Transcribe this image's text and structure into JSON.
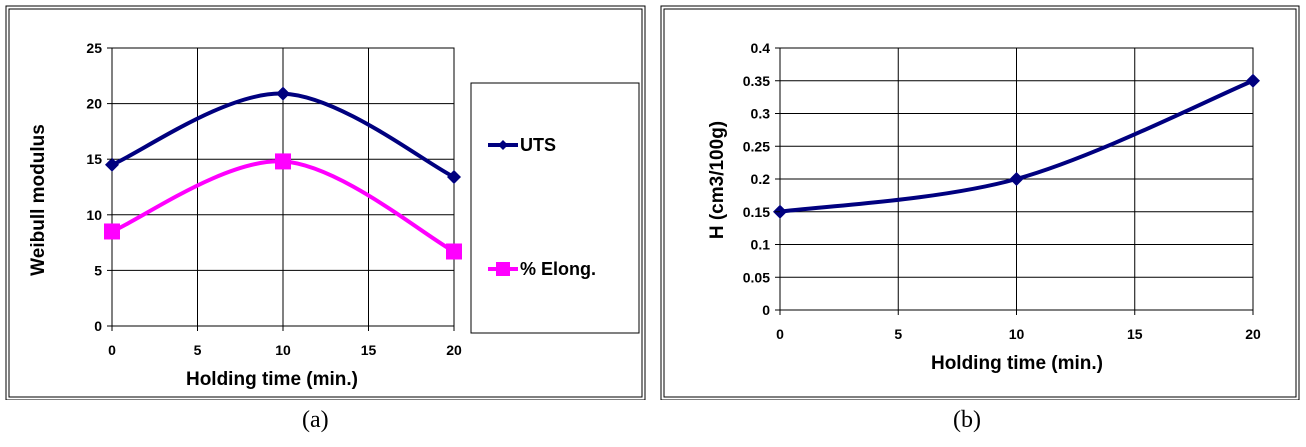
{
  "chart_data": [
    {
      "type": "line",
      "panel_label": "(a)",
      "xlabel": "Holding time (min.)",
      "ylabel": "Weibull modulus",
      "xlim": [
        0,
        20
      ],
      "ylim": [
        0,
        25
      ],
      "xticks": [
        "0",
        "5",
        "10",
        "15",
        "20"
      ],
      "yticks": [
        "0",
        "5",
        "10",
        "15",
        "20",
        "25"
      ],
      "grid": true,
      "legend_position": "right",
      "series": [
        {
          "name": "UTS",
          "color": "#00007f",
          "marker": "diamond",
          "x": [
            0,
            10,
            20
          ],
          "values": [
            14.5,
            20.9,
            13.4
          ]
        },
        {
          "name": "% Elong.",
          "color": "#ff00ff",
          "marker": "square",
          "x": [
            0,
            10,
            20
          ],
          "values": [
            8.5,
            14.8,
            6.7
          ]
        }
      ]
    },
    {
      "type": "line",
      "panel_label": "(b)",
      "xlabel": "Holding time (min.)",
      "ylabel": "H (cm3/100g)",
      "xlim": [
        0,
        20
      ],
      "ylim": [
        0,
        0.4
      ],
      "xticks": [
        "0",
        "5",
        "10",
        "15",
        "20"
      ],
      "yticks": [
        "0",
        "0.05",
        "0.1",
        "0.15",
        "0.2",
        "0.25",
        "0.3",
        "0.35",
        "0.4"
      ],
      "grid": true,
      "series": [
        {
          "color": "#00007f",
          "marker": "diamond",
          "x": [
            0,
            10,
            20
          ],
          "values": [
            0.15,
            0.2,
            0.35
          ]
        }
      ]
    }
  ]
}
